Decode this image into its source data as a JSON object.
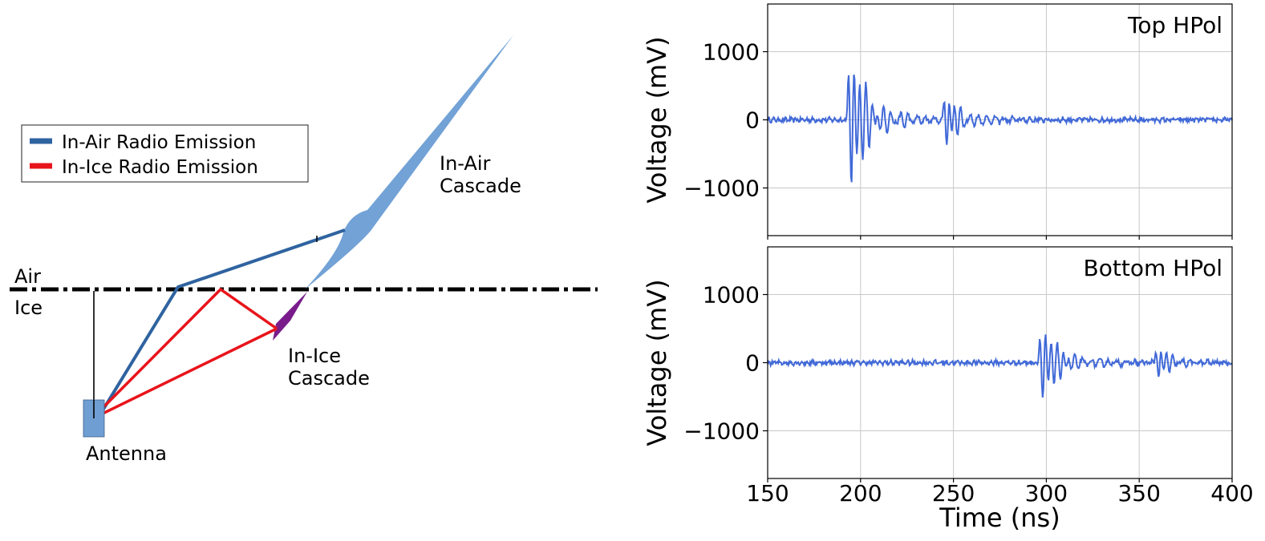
{
  "diagram": {
    "legend": [
      {
        "label": "In-Air Radio Emission",
        "color": "#2f63a0"
      },
      {
        "label": "In-Ice Radio Emission",
        "color": "#e8141b"
      }
    ],
    "labels": {
      "air": "Air",
      "ice": "Ice",
      "in_air_cascade_1": "In-Air",
      "in_air_cascade_2": "Cascade",
      "in_ice_cascade_1": "In-Ice",
      "in_ice_cascade_2": "Cascade",
      "antenna": "Antenna"
    },
    "colors": {
      "air_ray": "#2f63a0",
      "ice_ray": "#e8141b",
      "air_cascade": "#72a2d6",
      "ice_cascade": "#7a1b8c",
      "antenna": "#6f9ed3"
    }
  },
  "chart_data": [
    {
      "type": "line",
      "name": "Top HPol",
      "annotation": "Top HPol",
      "xlim": [
        150,
        400
      ],
      "ylim": [
        -1700,
        1700
      ],
      "yticks": [
        1000,
        0,
        -1000
      ],
      "ytick_labels": [
        "1000",
        "0",
        "−1000"
      ],
      "xticks": [
        150,
        200,
        250,
        300,
        350,
        400
      ],
      "ylabel": "Voltage (mV)",
      "grid": true,
      "color": "#4169d8",
      "pulses": [
        {
          "t0": 192.5,
          "amp": 1500,
          "decay": 4.5,
          "period": 3.2
        },
        {
          "t0": 244,
          "amp": 650,
          "decay": 3.5,
          "period": 3.0
        }
      ]
    },
    {
      "type": "line",
      "name": "Bottom HPol",
      "annotation": "Bottom HPol",
      "xlim": [
        150,
        400
      ],
      "ylim": [
        -1700,
        1700
      ],
      "yticks": [
        1000,
        0,
        -1000
      ],
      "ytick_labels": [
        "1000",
        "0",
        "−1000"
      ],
      "xticks": [
        150,
        200,
        250,
        300,
        350,
        400
      ],
      "xtick_labels": [
        "150",
        "200",
        "250",
        "300",
        "350",
        "400"
      ],
      "xlabel": "Time (ns)",
      "ylabel": "Voltage (mV)",
      "grid": true,
      "color": "#4169d8",
      "pulses": [
        {
          "t0": 295.5,
          "amp": 800,
          "decay": 4.5,
          "period": 3.2
        },
        {
          "t0": 358,
          "amp": 400,
          "decay": 3.5,
          "period": 3.0
        }
      ]
    }
  ]
}
